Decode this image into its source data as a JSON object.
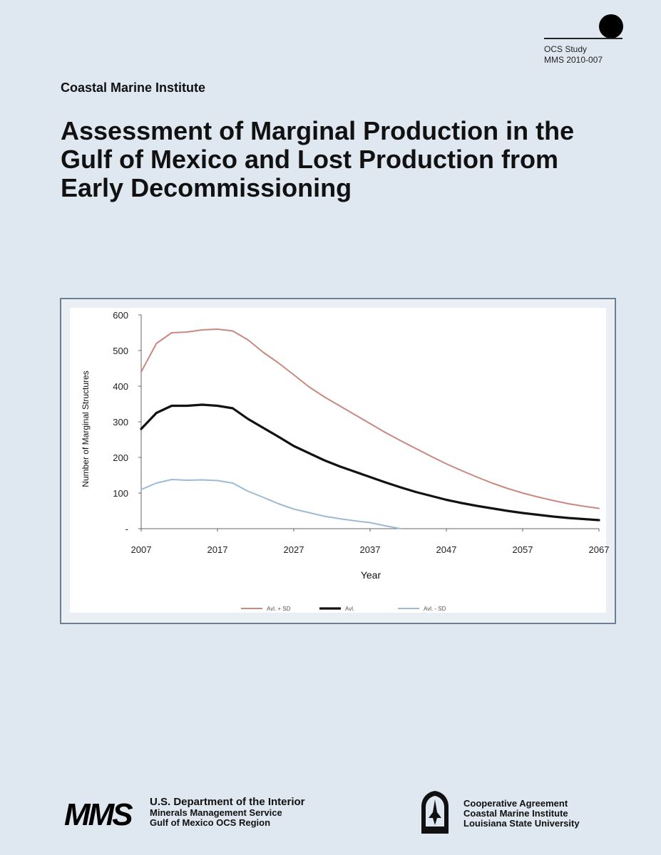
{
  "header": {
    "study_line1": "OCS Study",
    "study_line2": "MMS 2010-007",
    "institute": "Coastal Marine Institute",
    "title": "Assessment of Marginal Production in the Gulf of Mexico and Lost Production from Early Decommissioning"
  },
  "chart_data": {
    "type": "line",
    "xlabel": "Year",
    "ylabel": "Number of Marginal Structures",
    "xlim": [
      2007,
      2067
    ],
    "ylim": [
      0,
      600
    ],
    "xticks": [
      2007,
      2017,
      2027,
      2037,
      2047,
      2057,
      2067
    ],
    "ytick_labels": [
      "-",
      "100",
      "200",
      "300",
      "400",
      "500",
      "600"
    ],
    "legend_position": "bottom",
    "grid": false,
    "series": [
      {
        "name": "Avl. + SD",
        "color": "#c98880",
        "x": [
          2007,
          2009,
          2011,
          2013,
          2015,
          2017,
          2019,
          2021,
          2023,
          2025,
          2027,
          2029,
          2031,
          2033,
          2035,
          2037,
          2039,
          2041,
          2043,
          2045,
          2047,
          2049,
          2051,
          2053,
          2055,
          2057,
          2059,
          2061,
          2063,
          2065,
          2067
        ],
        "values": [
          440,
          520,
          550,
          552,
          558,
          560,
          555,
          530,
          495,
          465,
          432,
          398,
          370,
          345,
          320,
          295,
          270,
          247,
          225,
          203,
          182,
          163,
          145,
          128,
          113,
          100,
          89,
          79,
          70,
          63,
          57
        ]
      },
      {
        "name": "Avl.",
        "color": "#111111",
        "x": [
          2007,
          2009,
          2011,
          2013,
          2015,
          2017,
          2019,
          2021,
          2023,
          2025,
          2027,
          2029,
          2031,
          2033,
          2035,
          2037,
          2039,
          2041,
          2043,
          2045,
          2047,
          2049,
          2051,
          2053,
          2055,
          2057,
          2059,
          2061,
          2063,
          2065,
          2067
        ],
        "values": [
          280,
          325,
          345,
          345,
          348,
          345,
          338,
          308,
          283,
          258,
          232,
          212,
          192,
          175,
          160,
          145,
          130,
          116,
          103,
          92,
          81,
          72,
          64,
          57,
          50,
          44,
          39,
          34,
          30,
          27,
          24
        ]
      },
      {
        "name": "Avl. - SD",
        "color": "#9dbad3",
        "x": [
          2007,
          2009,
          2011,
          2013,
          2015,
          2017,
          2019,
          2021,
          2023,
          2025,
          2027,
          2029,
          2031,
          2033,
          2035,
          2037,
          2039,
          2041
        ],
        "values": [
          110,
          128,
          138,
          136,
          137,
          135,
          128,
          105,
          88,
          70,
          55,
          45,
          35,
          28,
          22,
          17,
          8,
          0
        ]
      }
    ]
  },
  "footer": {
    "mms_logo": "MMS",
    "dept_line1": "U.S. Department of the Interior",
    "dept_line2": "Minerals Management Service",
    "dept_line3": "Gulf of Mexico OCS Region",
    "coop_line1": "Cooperative Agreement",
    "coop_line2": "Coastal Marine Institute",
    "coop_line3": "Louisiana State University"
  }
}
